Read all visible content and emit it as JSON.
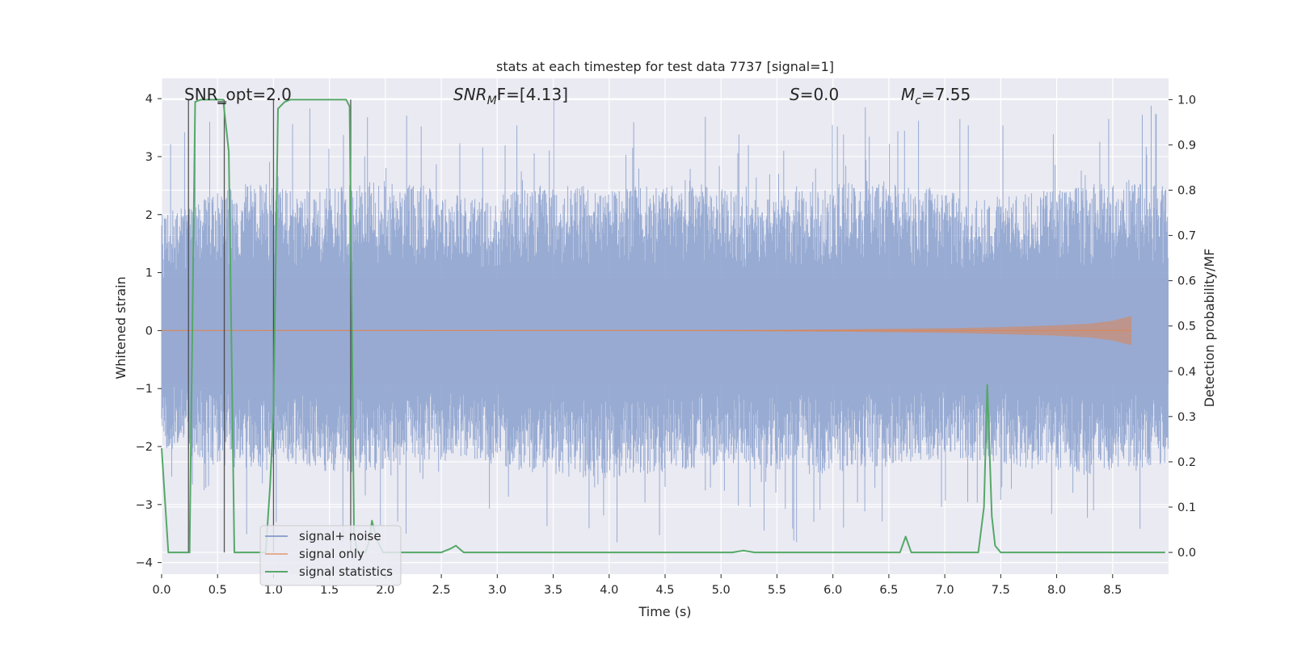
{
  "chart_data": {
    "type": "line",
    "title": "stats at each timestep for test data 7737 [signal=1]",
    "xlabel": "Time (s)",
    "ylabel_left": "Whitened strain",
    "ylabel_right": "Detection probability/MF",
    "xlim": [
      0.0,
      9.0
    ],
    "ylim_left": [
      -4.2,
      4.35
    ],
    "ylim_right": [
      -0.048,
      1.047
    ],
    "x_ticks": [
      "0.0",
      "0.5",
      "1.0",
      "1.5",
      "2.0",
      "2.5",
      "3.0",
      "3.5",
      "4.0",
      "4.5",
      "5.0",
      "5.5",
      "6.0",
      "6.5",
      "7.0",
      "7.5",
      "8.0",
      "8.5"
    ],
    "x_tick_values": [
      0.0,
      0.5,
      1.0,
      1.5,
      2.0,
      2.5,
      3.0,
      3.5,
      4.0,
      4.5,
      5.0,
      5.5,
      6.0,
      6.5,
      7.0,
      7.5,
      8.0,
      8.5
    ],
    "y_left_ticks": [
      "4",
      "3",
      "2",
      "1",
      "0",
      "−1",
      "−2",
      "−3",
      "−4"
    ],
    "y_left_tick_values": [
      4,
      3,
      2,
      1,
      0,
      -1,
      -2,
      -3,
      -4
    ],
    "y_right_ticks": [
      "1.0",
      "0.9",
      "0.8",
      "0.7",
      "0.6",
      "0.5",
      "0.4",
      "0.3",
      "0.2",
      "0.1",
      "0.0"
    ],
    "y_right_tick_values": [
      1.0,
      0.9,
      0.8,
      0.7,
      0.6,
      0.5,
      0.4,
      0.3,
      0.2,
      0.1,
      0.0
    ],
    "grid": true,
    "annotations": {
      "snr_opt": "SNR_opt=2.0",
      "snr_mf_label": "SNR",
      "snr_mf_sub": "M",
      "snr_mf_suffix": "F=[4.13]",
      "s_label": "S",
      "s_value": "=0.0",
      "mc_label": "M",
      "mc_sub": "c",
      "mc_value": "=7.55"
    },
    "series": [
      {
        "name": "signal+ noise",
        "color": "#8fa4cf",
        "description": "whitened noisy strain, spans roughly -3.6 to 4.0, mostly within ±2.5",
        "envelope_upper": [
          2.0,
          2.3,
          2.6,
          2.4,
          2.5,
          2.6,
          2.5,
          2.3,
          2.4,
          2.6,
          2.5,
          2.5,
          2.6,
          2.4,
          2.3,
          2.5,
          2.6,
          2.5,
          2.4,
          2.3,
          2.4,
          2.5,
          2.6,
          2.5
        ],
        "envelope_lower": [
          -2.0,
          -2.3,
          -2.4,
          -2.3,
          -2.5,
          -2.4,
          -2.3,
          -2.2,
          -2.4,
          -2.5,
          -2.6,
          -2.5,
          -2.4,
          -2.3,
          -2.4,
          -2.5,
          -2.4,
          -2.3,
          -2.2,
          -2.3,
          -2.4,
          -2.5,
          -2.4,
          -2.3
        ]
      },
      {
        "name": "signal only",
        "color": "#dd8452",
        "description": "injected chirp, near 0 then growing to about ±0.25 ending at t≈8.67 s",
        "x": [
          0.0,
          5.0,
          6.0,
          7.0,
          7.5,
          8.0,
          8.3,
          8.5,
          8.6,
          8.67
        ],
        "amplitude": [
          0.005,
          0.01,
          0.02,
          0.04,
          0.06,
          0.09,
          0.12,
          0.17,
          0.22,
          0.25
        ]
      },
      {
        "name": "signal statistics",
        "color": "#55a868",
        "axis": "right",
        "x": [
          0.0,
          0.06,
          0.2,
          0.25,
          0.3,
          0.35,
          0.45,
          0.55,
          0.6,
          0.65,
          0.68,
          0.7,
          0.72,
          0.85,
          0.93,
          0.97,
          1.0,
          1.04,
          1.08,
          1.1,
          1.15,
          1.2,
          1.25,
          1.3,
          1.35,
          1.4,
          1.5,
          1.6,
          1.65,
          1.68,
          1.72,
          1.75,
          1.78,
          1.82,
          1.85,
          1.88,
          1.92,
          1.98,
          2.5,
          2.58,
          2.63,
          2.7,
          3.0,
          4.0,
          5.1,
          5.2,
          5.3,
          6.0,
          6.58,
          6.6,
          6.65,
          6.7,
          7.0,
          7.3,
          7.35,
          7.38,
          7.42,
          7.45,
          7.5,
          7.7,
          8.0,
          8.5,
          8.8,
          8.97
        ],
        "values": [
          0.23,
          0.0,
          0.0,
          0.0,
          0.995,
          1.0,
          1.0,
          1.0,
          0.885,
          0.0,
          0.0,
          0.0,
          0.0,
          0.0,
          0.0,
          0.15,
          0.31,
          0.98,
          0.99,
          0.995,
          1.0,
          1.0,
          1.0,
          1.0,
          1.0,
          1.0,
          1.0,
          1.0,
          1.0,
          0.985,
          0.04,
          0.0,
          0.0,
          0.0,
          0.02,
          0.07,
          0.03,
          0.0,
          0.0,
          0.008,
          0.015,
          0.0,
          0.0,
          0.0,
          0.0,
          0.004,
          0.0,
          0.0,
          0.0,
          0.0,
          0.035,
          0.0,
          0.0,
          0.0,
          0.1,
          0.37,
          0.08,
          0.015,
          0.0,
          0.0,
          0.0,
          0.0,
          0.0,
          0.0
        ]
      }
    ],
    "vertical_lines_x": [
      0.24,
      0.56,
      1.0,
      1.69
    ],
    "horizontal_markers": [
      {
        "x_from": 0.5,
        "x_to": 0.58,
        "y_right": 0.995
      }
    ],
    "legend_location": "lower-left",
    "legend": [
      "signal+ noise",
      "signal only",
      "signal statistics"
    ]
  },
  "colors": {
    "axes_bg": "#eaeaf2",
    "grid": "#ffffff",
    "noise": "#8fa4cf",
    "signal": "#dd8452",
    "stats": "#55a868",
    "vline": "#3b3b3b"
  }
}
